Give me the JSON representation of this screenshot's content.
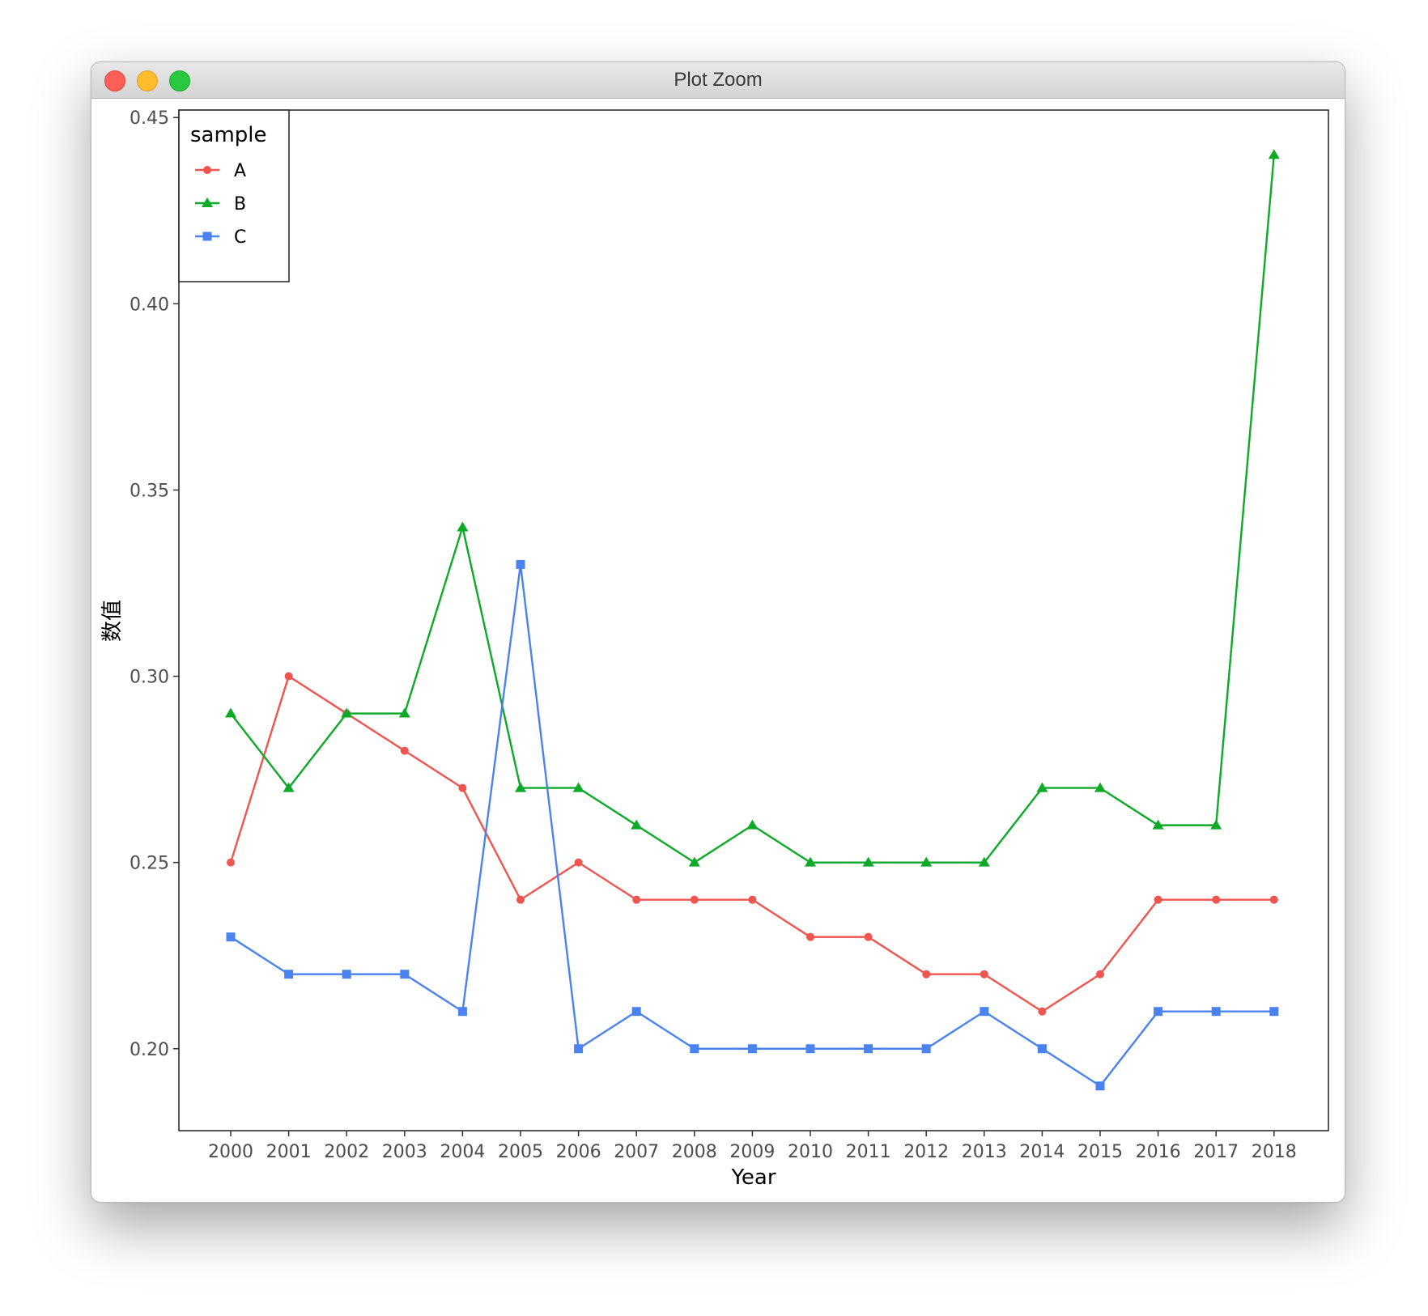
{
  "window": {
    "title": "Plot Zoom"
  },
  "chart_data": {
    "type": "line",
    "title": "",
    "xlabel": "Year",
    "ylabel": "数值",
    "categories": [
      "2000",
      "2001",
      "2002",
      "2003",
      "2004",
      "2005",
      "2006",
      "2007",
      "2008",
      "2009",
      "2010",
      "2011",
      "2012",
      "2013",
      "2014",
      "2015",
      "2016",
      "2017",
      "2018"
    ],
    "ylim": [
      0.178,
      0.452
    ],
    "yticks": [
      "0.20",
      "0.25",
      "0.30",
      "0.35",
      "0.40",
      "0.45"
    ],
    "grid": false,
    "legend": {
      "title": "sample",
      "position": "top-left"
    },
    "series": [
      {
        "name": "A",
        "color": "#F0554F",
        "marker": "circle",
        "values": [
          0.25,
          0.3,
          0.29,
          0.28,
          0.27,
          0.24,
          0.25,
          0.24,
          0.24,
          0.24,
          0.23,
          0.23,
          0.22,
          0.22,
          0.21,
          0.22,
          0.24,
          0.24,
          0.24
        ]
      },
      {
        "name": "B",
        "color": "#0DAA28",
        "marker": "triangle",
        "values": [
          0.29,
          0.27,
          0.29,
          0.29,
          0.34,
          0.27,
          0.27,
          0.26,
          0.25,
          0.26,
          0.25,
          0.25,
          0.25,
          0.25,
          0.27,
          0.27,
          0.26,
          0.26,
          0.44
        ]
      },
      {
        "name": "C",
        "color": "#4A82F0",
        "marker": "square",
        "values": [
          0.23,
          0.22,
          0.22,
          0.22,
          0.21,
          0.33,
          0.2,
          0.21,
          0.2,
          0.2,
          0.2,
          0.2,
          0.2,
          0.21,
          0.2,
          0.19,
          0.21,
          0.21,
          0.21
        ]
      }
    ]
  }
}
